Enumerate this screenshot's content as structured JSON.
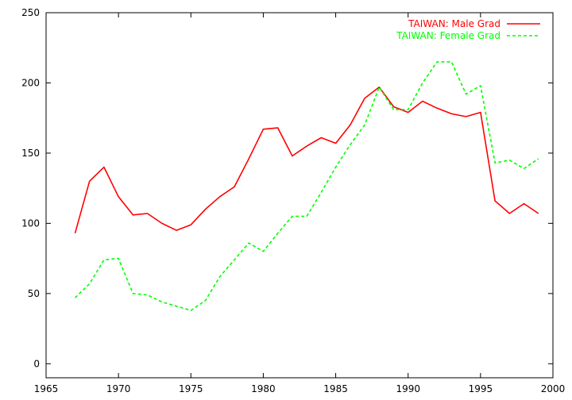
{
  "chart_data": {
    "type": "line",
    "title": "",
    "xlabel": "",
    "ylabel": "",
    "xlim": [
      1965,
      2000
    ],
    "ylim": [
      -10,
      250
    ],
    "xticks": [
      1965,
      1970,
      1975,
      1980,
      1985,
      1990,
      1995,
      2000
    ],
    "yticks": [
      0,
      50,
      100,
      150,
      200,
      250
    ],
    "grid": false,
    "legend_position": "top-right",
    "series": [
      {
        "name": "TAIWAN: Male Grad",
        "color": "#ff0000",
        "style": "solid",
        "x": [
          1967,
          1968,
          1969,
          1970,
          1971,
          1972,
          1973,
          1974,
          1975,
          1976,
          1977,
          1978,
          1979,
          1980,
          1981,
          1982,
          1983,
          1984,
          1985,
          1986,
          1987,
          1988,
          1989,
          1990,
          1991,
          1992,
          1993,
          1994,
          1995,
          1996,
          1997,
          1998,
          1999
        ],
        "y": [
          93,
          130,
          140,
          119,
          106,
          107,
          100,
          95,
          99,
          110,
          119,
          126,
          146,
          167,
          168,
          148,
          155,
          161,
          157,
          170,
          189,
          197,
          183,
          179,
          187,
          182,
          178,
          176,
          179,
          116,
          107,
          114,
          107
        ]
      },
      {
        "name": "TAIWAN: Female Grad",
        "color": "#00ff00",
        "style": "dashed",
        "x": [
          1967,
          1968,
          1969,
          1970,
          1971,
          1972,
          1973,
          1974,
          1975,
          1976,
          1977,
          1978,
          1979,
          1980,
          1981,
          1982,
          1983,
          1984,
          1985,
          1986,
          1987,
          1988,
          1989,
          1990,
          1991,
          1992,
          1993,
          1994,
          1995,
          1996,
          1997,
          1998,
          1999
        ],
        "y": [
          47,
          57,
          74,
          75,
          50,
          49,
          44,
          41,
          38,
          45,
          62,
          74,
          86,
          80,
          93,
          105,
          105,
          122,
          140,
          156,
          170,
          197,
          181,
          181,
          200,
          215,
          215,
          192,
          198,
          143,
          145,
          139,
          146
        ]
      }
    ]
  }
}
